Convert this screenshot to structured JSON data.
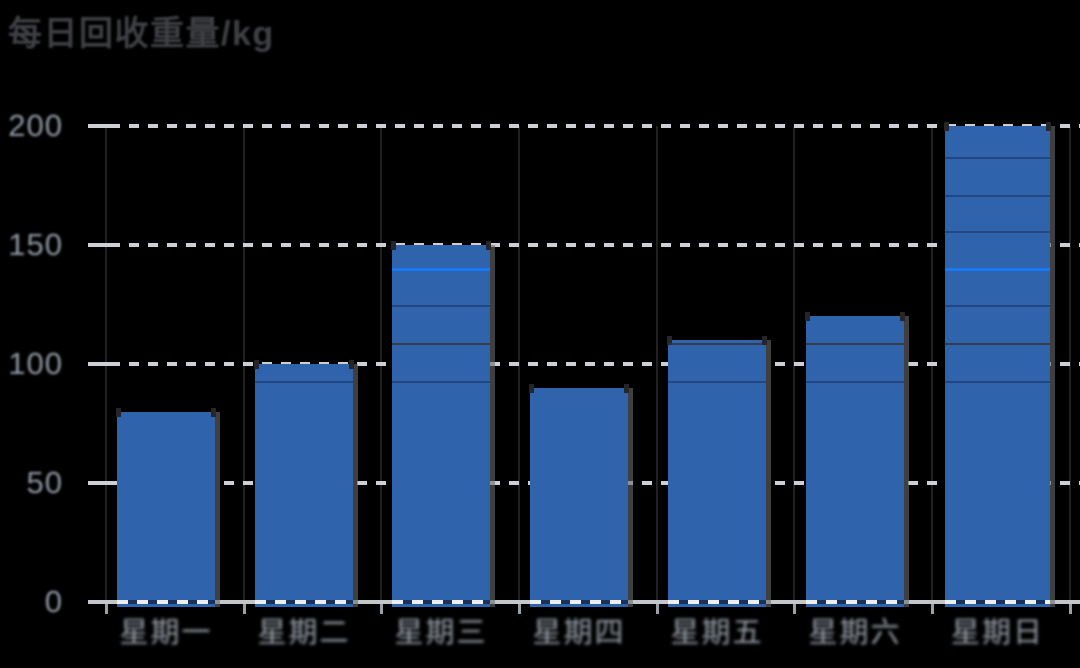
{
  "title": {
    "text": "每日回收重量/kg"
  },
  "y_axis": {
    "tick_labels": [
      "0",
      "50",
      "100",
      "150",
      "200"
    ]
  },
  "x_axis": {
    "category_labels": [
      "星期一",
      "星期二",
      "星期三",
      "星期四",
      "星期五",
      "星期六",
      "星期日"
    ]
  },
  "chart_data": {
    "type": "bar",
    "title": "每日回收重量/kg",
    "categories": [
      "星期一",
      "星期二",
      "星期三",
      "星期四",
      "星期五",
      "星期六",
      "星期日"
    ],
    "values": [
      80,
      100,
      150,
      90,
      110,
      120,
      200
    ],
    "xlabel": "",
    "ylabel": "",
    "ylim": [
      0,
      200
    ],
    "yticks": [
      0,
      50,
      100,
      150,
      200
    ],
    "grid": "horizontal-dashed",
    "legend_position": "none",
    "series_name": "",
    "reference_lines": [
      {
        "value": 92,
        "style": "faint"
      },
      {
        "value": 108,
        "style": "dark"
      },
      {
        "value": 124,
        "style": "faint"
      },
      {
        "value": 139,
        "style": "bright"
      },
      {
        "value": 155,
        "style": "faint"
      },
      {
        "value": 170,
        "style": "faint"
      },
      {
        "value": 186,
        "style": "faint"
      }
    ]
  },
  "colors": {
    "background": "#000000",
    "bar": "#2f63ab",
    "gridline": "#ccd0d4",
    "axis_line": "#c3c7cb",
    "reference_bright": "#1879f2",
    "title_text": "#3e4044",
    "y_label_text": "#929aa6",
    "x_label_text": "#99a1ab"
  }
}
